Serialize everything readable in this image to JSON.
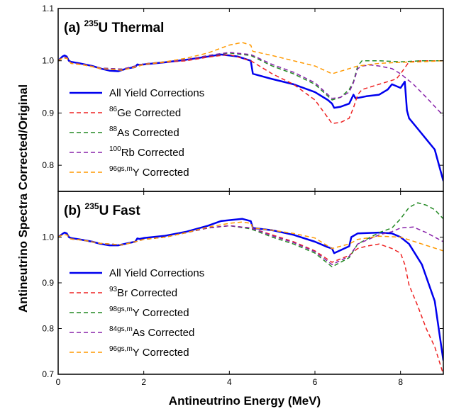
{
  "chart_data": [
    {
      "type": "line",
      "panel": "a",
      "title": "(a) 235U Thermal",
      "title_parts": {
        "label": "(a)",
        "sup": "235",
        "text": "U Thermal"
      },
      "xlabel": "Antineutrino Energy (MeV)",
      "ylabel": "Antineutrino Spectra Corrected/Original",
      "xlim": [
        0,
        9
      ],
      "ylim": [
        0.75,
        1.1
      ],
      "xticks": [
        0,
        2,
        4,
        6,
        8
      ],
      "yticks": [
        0.8,
        0.9,
        1.0,
        1.1
      ],
      "ytick_labels": [
        "0.8",
        "0.9",
        "1.0",
        "1.1"
      ],
      "legend_position": "bottom-left",
      "series": [
        {
          "name": "All Yield Corrections",
          "sup": "",
          "text": "All Yield Corrections",
          "color": "#0000ee",
          "style": "solid",
          "x": [
            0,
            0.1,
            0.15,
            0.2,
            0.25,
            0.3,
            0.5,
            0.8,
            1.0,
            1.2,
            1.4,
            1.6,
            1.8,
            1.85,
            1.9,
            2.0,
            2.5,
            3.0,
            3.5,
            3.8,
            4.0,
            4.2,
            4.5,
            4.55,
            5.0,
            5.5,
            6.0,
            6.3,
            6.4,
            6.45,
            6.6,
            6.8,
            6.9,
            6.95,
            7.2,
            7.5,
            7.7,
            7.8,
            8.0,
            8.1,
            8.15,
            8.2,
            8.4,
            8.6,
            8.8,
            9.0
          ],
          "y": [
            1.0,
            1.008,
            1.01,
            1.008,
            1.0,
            0.998,
            0.995,
            0.99,
            0.985,
            0.981,
            0.98,
            0.985,
            0.988,
            0.993,
            0.992,
            0.993,
            0.997,
            1.002,
            1.008,
            1.012,
            1.01,
            1.008,
            1.0,
            0.975,
            0.965,
            0.955,
            0.94,
            0.925,
            0.918,
            0.91,
            0.912,
            0.918,
            0.935,
            0.928,
            0.932,
            0.935,
            0.945,
            0.955,
            0.948,
            0.96,
            0.905,
            0.89,
            0.87,
            0.85,
            0.83,
            0.77
          ]
        },
        {
          "name": "86Ge Corrected",
          "sup": "86",
          "text": "Ge Corrected",
          "color": "#ee2222",
          "style": "dashed",
          "x": [
            0,
            0.1,
            0.2,
            0.3,
            0.6,
            1.0,
            1.5,
            1.8,
            2.0,
            2.5,
            3.0,
            3.5,
            4.0,
            4.5,
            5.0,
            5.5,
            6.0,
            6.4,
            6.6,
            6.8,
            6.9,
            7.0,
            7.1,
            7.3,
            7.5,
            7.7,
            7.9,
            8.0,
            8.2,
            8.5,
            9.0
          ],
          "y": [
            1.0,
            1.005,
            1.005,
            0.995,
            0.992,
            0.985,
            0.982,
            0.988,
            0.993,
            0.997,
            1.0,
            1.007,
            1.012,
            1.0,
            0.975,
            0.955,
            0.925,
            0.88,
            0.882,
            0.89,
            0.91,
            0.935,
            0.945,
            0.95,
            0.955,
            0.96,
            0.965,
            0.975,
            0.998,
            1.0,
            1.0
          ]
        },
        {
          "name": "88As Corrected",
          "sup": "88",
          "text": "As Corrected",
          "color": "#228822",
          "style": "dashed",
          "x": [
            0,
            0.1,
            0.2,
            0.3,
            0.6,
            1.0,
            1.5,
            1.8,
            2.0,
            2.5,
            3.0,
            3.5,
            4.0,
            4.5,
            5.0,
            5.5,
            6.0,
            6.4,
            6.6,
            6.8,
            6.9,
            7.0,
            7.1,
            7.5,
            8.0,
            8.5,
            9.0
          ],
          "y": [
            1.0,
            1.006,
            1.006,
            0.996,
            0.993,
            0.986,
            0.984,
            0.99,
            0.994,
            0.998,
            1.002,
            1.01,
            1.015,
            1.01,
            0.99,
            0.975,
            0.955,
            0.925,
            0.93,
            0.945,
            0.96,
            0.99,
            1.0,
            1.0,
            0.998,
            1.0,
            1.0
          ]
        },
        {
          "name": "100Rb Corrected",
          "sup": "100",
          "text": "Rb Corrected",
          "color": "#8822aa",
          "style": "dashed",
          "x": [
            0,
            0.1,
            0.2,
            0.3,
            0.6,
            1.0,
            1.5,
            1.8,
            2.0,
            2.5,
            3.0,
            3.5,
            4.0,
            4.5,
            5.0,
            5.5,
            6.0,
            6.4,
            6.6,
            6.8,
            6.9,
            7.0,
            7.1,
            7.3,
            7.5,
            7.8,
            8.0,
            8.3,
            8.6,
            9.0
          ],
          "y": [
            1.0,
            1.006,
            1.006,
            0.996,
            0.993,
            0.986,
            0.984,
            0.99,
            0.994,
            0.998,
            1.002,
            1.01,
            1.016,
            1.012,
            0.993,
            0.978,
            0.958,
            0.928,
            0.93,
            0.94,
            0.958,
            0.985,
            0.99,
            0.992,
            0.99,
            0.985,
            0.975,
            0.955,
            0.93,
            0.895
          ]
        },
        {
          "name": "96gs,mY Corrected",
          "sup": "96gs,m",
          "text": "Y Corrected",
          "color": "#ff9900",
          "style": "dashed",
          "x": [
            0,
            0.1,
            0.2,
            0.3,
            0.6,
            1.0,
            1.5,
            1.8,
            2.0,
            2.5,
            3.0,
            3.5,
            4.0,
            4.3,
            4.5,
            4.55,
            5.0,
            5.5,
            6.0,
            6.4,
            6.8,
            7.0,
            7.5,
            8.0,
            8.5,
            9.0
          ],
          "y": [
            1.0,
            1.005,
            1.005,
            0.995,
            0.992,
            0.985,
            0.982,
            0.988,
            0.993,
            0.998,
            1.005,
            1.015,
            1.03,
            1.035,
            1.03,
            1.018,
            1.01,
            1.0,
            0.99,
            0.975,
            0.985,
            0.99,
            0.995,
            0.997,
            0.998,
            1.0
          ]
        }
      ]
    },
    {
      "type": "line",
      "panel": "b",
      "title": "(b) 235U Fast",
      "title_parts": {
        "label": "(b)",
        "sup": "235",
        "text": "U Fast"
      },
      "xlabel": "Antineutrino Energy (MeV)",
      "xlim": [
        0,
        9
      ],
      "ylim": [
        0.7,
        1.1
      ],
      "xticks": [
        0,
        2,
        4,
        6,
        8
      ],
      "xtick_labels": [
        "0",
        "2",
        "4",
        "6",
        "8"
      ],
      "yticks": [
        0.7,
        0.8,
        0.9,
        1.0
      ],
      "ytick_labels": [
        "0.7",
        "0.8",
        "0.9",
        "1.0"
      ],
      "legend_position": "bottom-left",
      "series": [
        {
          "name": "All Yield Corrections",
          "sup": "",
          "text": "All Yield Corrections",
          "color": "#0000ee",
          "style": "solid",
          "x": [
            0,
            0.1,
            0.15,
            0.2,
            0.25,
            0.3,
            0.5,
            0.8,
            1.0,
            1.2,
            1.4,
            1.6,
            1.8,
            1.85,
            1.9,
            2.0,
            2.5,
            3.0,
            3.5,
            3.8,
            4.0,
            4.3,
            4.5,
            4.55,
            5.0,
            5.5,
            6.0,
            6.3,
            6.4,
            6.45,
            6.8,
            6.85,
            7.0,
            7.5,
            7.8,
            8.0,
            8.2,
            8.5,
            8.8,
            9.0
          ],
          "y": [
            1.0,
            1.007,
            1.01,
            1.008,
            1.0,
            0.998,
            0.995,
            0.99,
            0.985,
            0.982,
            0.982,
            0.986,
            0.99,
            0.997,
            0.996,
            0.998,
            1.003,
            1.012,
            1.025,
            1.035,
            1.037,
            1.04,
            1.035,
            1.02,
            1.015,
            1.005,
            0.99,
            0.978,
            0.975,
            0.965,
            0.98,
            1.0,
            1.008,
            1.01,
            1.008,
            1.0,
            0.985,
            0.94,
            0.86,
            0.73
          ]
        },
        {
          "name": "93Br Corrected",
          "sup": "93",
          "text": "Br Corrected",
          "color": "#ee2222",
          "style": "dashed",
          "x": [
            0,
            0.1,
            0.2,
            0.3,
            0.6,
            1.0,
            1.5,
            1.8,
            2.0,
            2.5,
            3.0,
            3.5,
            4.0,
            4.5,
            5.0,
            5.5,
            6.0,
            6.4,
            6.8,
            7.0,
            7.2,
            7.5,
            7.8,
            8.0,
            8.1,
            8.2,
            8.4,
            8.6,
            8.8,
            9.0
          ],
          "y": [
            1.0,
            1.005,
            1.005,
            0.996,
            0.993,
            0.986,
            0.983,
            0.99,
            0.995,
            1.0,
            1.01,
            1.02,
            1.025,
            1.02,
            1.005,
            0.99,
            0.97,
            0.945,
            0.96,
            0.975,
            0.98,
            0.985,
            0.975,
            0.965,
            0.94,
            0.895,
            0.85,
            0.8,
            0.76,
            0.7
          ]
        },
        {
          "name": "98gs,mY Corrected",
          "sup": "98gs,m",
          "text": "Y Corrected",
          "color": "#228822",
          "style": "dashed",
          "x": [
            0,
            0.1,
            0.2,
            0.3,
            0.6,
            1.0,
            1.5,
            1.8,
            2.0,
            2.5,
            3.0,
            3.5,
            4.0,
            4.5,
            5.0,
            5.5,
            6.0,
            6.4,
            6.8,
            7.0,
            7.5,
            7.8,
            8.0,
            8.2,
            8.4,
            8.6,
            8.8,
            9.0
          ],
          "y": [
            1.0,
            1.005,
            1.005,
            0.996,
            0.993,
            0.986,
            0.983,
            0.99,
            0.995,
            1.0,
            1.01,
            1.02,
            1.025,
            1.018,
            1.0,
            0.985,
            0.965,
            0.935,
            0.955,
            0.985,
            1.01,
            1.02,
            1.04,
            1.065,
            1.075,
            1.07,
            1.06,
            1.04
          ]
        },
        {
          "name": "84gs,mAs Corrected",
          "sup": "84gs,m",
          "text": "As Corrected",
          "color": "#8822aa",
          "style": "dashed",
          "x": [
            0,
            0.1,
            0.2,
            0.3,
            0.6,
            1.0,
            1.5,
            1.8,
            2.0,
            2.5,
            3.0,
            3.5,
            4.0,
            4.5,
            5.0,
            5.5,
            6.0,
            6.4,
            6.8,
            7.0,
            7.5,
            7.8,
            8.0,
            8.3,
            8.6,
            9.0
          ],
          "y": [
            1.0,
            1.005,
            1.005,
            0.996,
            0.993,
            0.986,
            0.983,
            0.99,
            0.995,
            1.0,
            1.01,
            1.02,
            1.025,
            1.02,
            1.003,
            0.988,
            0.968,
            0.94,
            0.958,
            0.985,
            1.005,
            1.012,
            1.02,
            1.022,
            1.01,
            0.99
          ]
        },
        {
          "name": "96gs,mY Corrected",
          "sup": "96gs,m",
          "text": "Y Corrected",
          "color": "#ff9900",
          "style": "dashed",
          "x": [
            0,
            0.1,
            0.2,
            0.3,
            0.6,
            1.0,
            1.5,
            1.8,
            2.0,
            2.5,
            3.0,
            3.5,
            4.0,
            4.3,
            4.5,
            4.55,
            5.0,
            5.5,
            6.0,
            6.4,
            6.8,
            7.0,
            7.5,
            8.0,
            8.5,
            9.0
          ],
          "y": [
            1.0,
            1.005,
            1.005,
            0.996,
            0.993,
            0.986,
            0.983,
            0.99,
            0.995,
            1.0,
            1.01,
            1.022,
            1.03,
            1.033,
            1.03,
            1.02,
            1.015,
            1.008,
            0.998,
            0.975,
            0.985,
            0.995,
            1.002,
            1.0,
            0.985,
            0.97
          ]
        }
      ]
    }
  ]
}
